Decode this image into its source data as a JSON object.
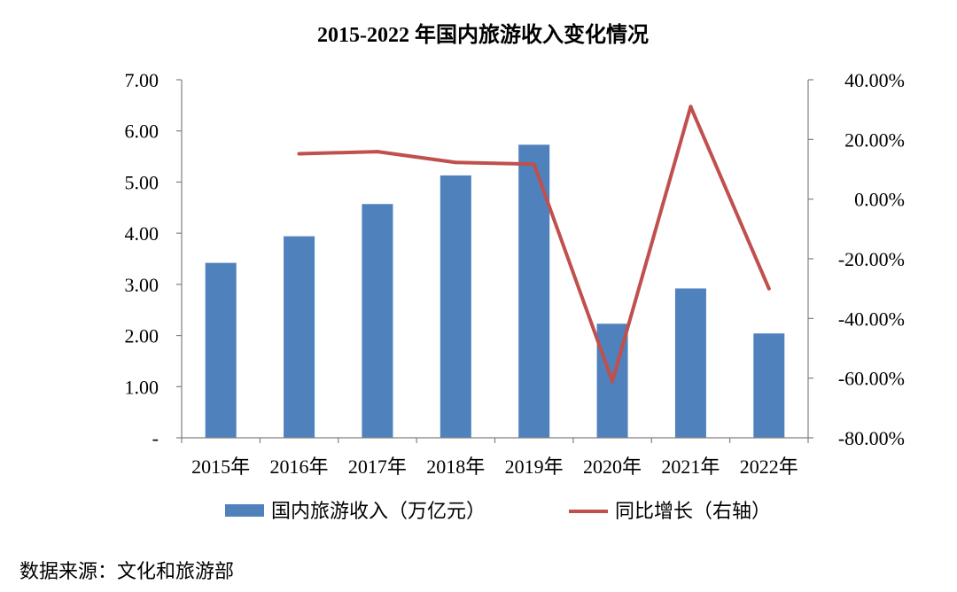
{
  "chart_data": {
    "type": "bar",
    "title": "2015-2022 年国内旅游收入变化情况",
    "categories": [
      "2015年",
      "2016年",
      "2017年",
      "2018年",
      "2019年",
      "2020年",
      "2021年",
      "2022年"
    ],
    "series": [
      {
        "name": "国内旅游收入（万亿元）",
        "type": "bar",
        "axis": "left",
        "color": "#4f81bd",
        "values": [
          3.42,
          3.94,
          4.57,
          5.13,
          5.73,
          2.23,
          2.92,
          2.04
        ]
      },
      {
        "name": "同比增长（右轴）",
        "type": "line",
        "axis": "right",
        "color": "#c0504d",
        "values": [
          null,
          15.2,
          15.9,
          12.3,
          11.7,
          -61.1,
          31.0,
          -30.0
        ]
      }
    ],
    "left_axis": {
      "min": 0,
      "max": 7,
      "step": 1,
      "tick_labels": [
        "-",
        "1.00",
        "2.00",
        "3.00",
        "4.00",
        "5.00",
        "6.00",
        "7.00"
      ]
    },
    "right_axis": {
      "min": -80,
      "max": 40,
      "step": 20,
      "tick_labels": [
        "-80.00%",
        "-60.00%",
        "-40.00%",
        "-20.00%",
        "0.00%",
        "20.00%",
        "40.00%"
      ]
    },
    "grid": false,
    "legend_position": "bottom"
  },
  "source_note": "数据来源：文化和旅游部"
}
